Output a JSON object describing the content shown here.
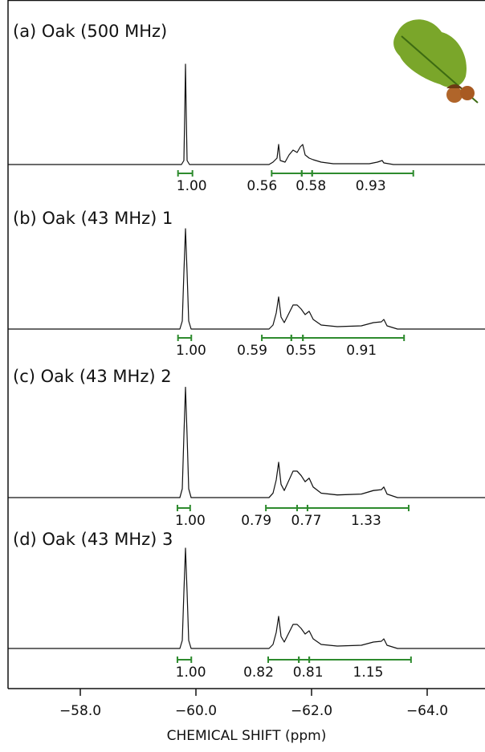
{
  "chart_data": {
    "type": "nmr-stack",
    "x_label": "CHEMICAL SHIFT (ppm)",
    "xlim": [
      -56.75,
      -65
    ],
    "xticks": [
      {
        "value": -58,
        "label": "−58.0"
      },
      {
        "value": -60,
        "label": "−60.0"
      },
      {
        "value": -62,
        "label": "−62.0"
      },
      {
        "value": -64,
        "label": "−64.0"
      }
    ],
    "integral_color": "#2e8b2e",
    "panels": [
      {
        "title": "(a) Oak (500 MHz)",
        "ranges": [
          [
            -59.69,
            -59.94
          ],
          [
            -61.31,
            -61.83
          ],
          [
            -61.83,
            -62.01
          ],
          [
            -62.01,
            -63.76
          ]
        ],
        "values": [
          1,
          0.56,
          0.58,
          0.93
        ],
        "value_labels": [
          "1.00",
          "0.56",
          "0.58",
          "0.93"
        ]
      },
      {
        "title": "(b) Oak (43 MHz) 1",
        "ranges": [
          [
            -59.69,
            -59.92
          ],
          [
            -61.14,
            -61.65
          ],
          [
            -61.65,
            -61.85
          ],
          [
            -61.85,
            -63.6
          ]
        ],
        "values": [
          1,
          0.59,
          0.55,
          0.91
        ],
        "value_labels": [
          "1.00",
          "0.59",
          "0.55",
          "0.91"
        ]
      },
      {
        "title": "(c) Oak (43 MHz) 2",
        "ranges": [
          [
            -59.68,
            -59.9
          ],
          [
            -61.21,
            -61.75
          ],
          [
            -61.75,
            -61.93
          ],
          [
            -61.93,
            -63.68
          ]
        ],
        "values": [
          1,
          0.79,
          0.77,
          1.33
        ],
        "value_labels": [
          "1.00",
          "0.79",
          "0.77",
          "1.33"
        ]
      },
      {
        "title": "(d) Oak (43 MHz) 3",
        "ranges": [
          [
            -59.68,
            -59.92
          ],
          [
            -61.25,
            -61.78
          ],
          [
            -61.78,
            -61.96
          ],
          [
            -61.96,
            -63.72
          ]
        ],
        "values": [
          1,
          0.82,
          0.81,
          1.15
        ],
        "value_labels": [
          "1.00",
          "0.82",
          "0.81",
          "1.15"
        ]
      }
    ]
  }
}
